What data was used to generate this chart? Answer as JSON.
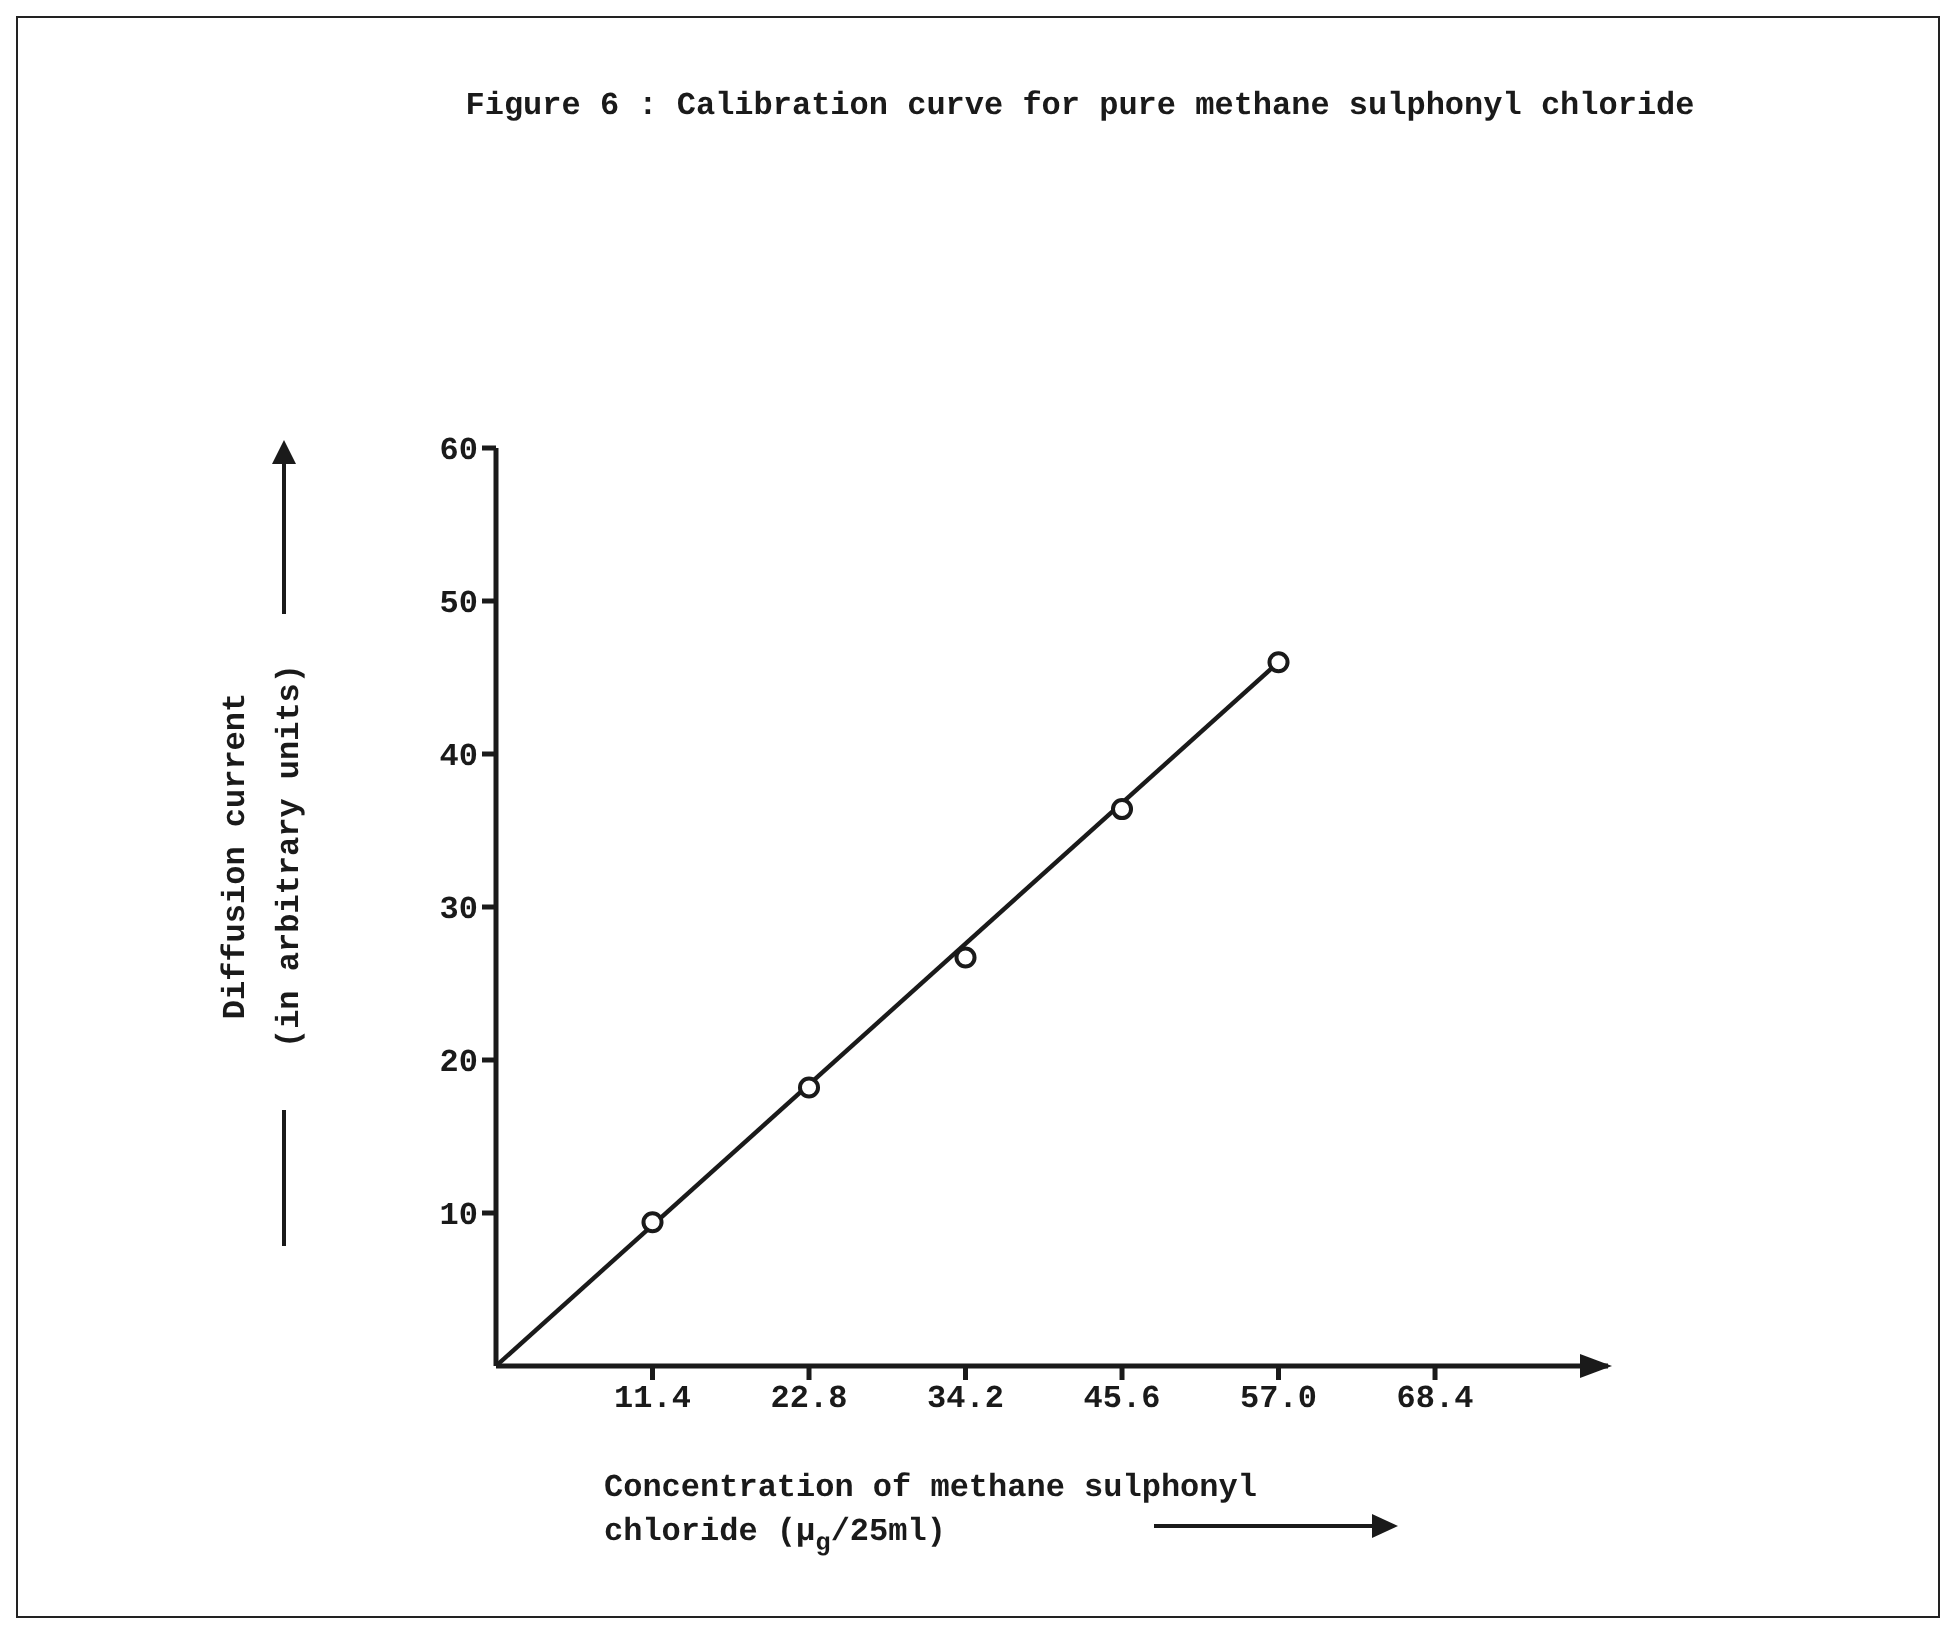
{
  "chart_data": {
    "type": "scatter",
    "title": "Figure 6 : Calibration curve for pure methane sulphonyl chloride",
    "xlabel": "Concentration of methane sulphonyl chloride (μ$_{g}$/25ml)",
    "ylabel": "Diffusion current (in arbitrary units)",
    "xlim": [
      0,
      81
    ],
    "ylim": [
      0,
      60
    ],
    "xticks": [
      11.4,
      22.8,
      34.2,
      45.6,
      {
        "value": 57,
        "label": "57.0"
      },
      68.4
    ],
    "yticks": [
      10,
      20,
      30,
      40,
      50,
      60
    ],
    "grid": false,
    "legend": false,
    "marker": "circle",
    "series": [
      {
        "color": "#1a1a1a",
        "x": [
          11.4,
          22.8,
          34.2,
          45.6,
          57
        ],
        "values": [
          9.4,
          18.2,
          26.7,
          36.4,
          46
        ]
      },
      {
        "type": "line",
        "color": "#1a1a1a",
        "marker": "none",
        "line_style": "solid",
        "x": [
          0,
          57
        ],
        "values": [
          0,
          46
        ]
      }
    ]
  }
}
